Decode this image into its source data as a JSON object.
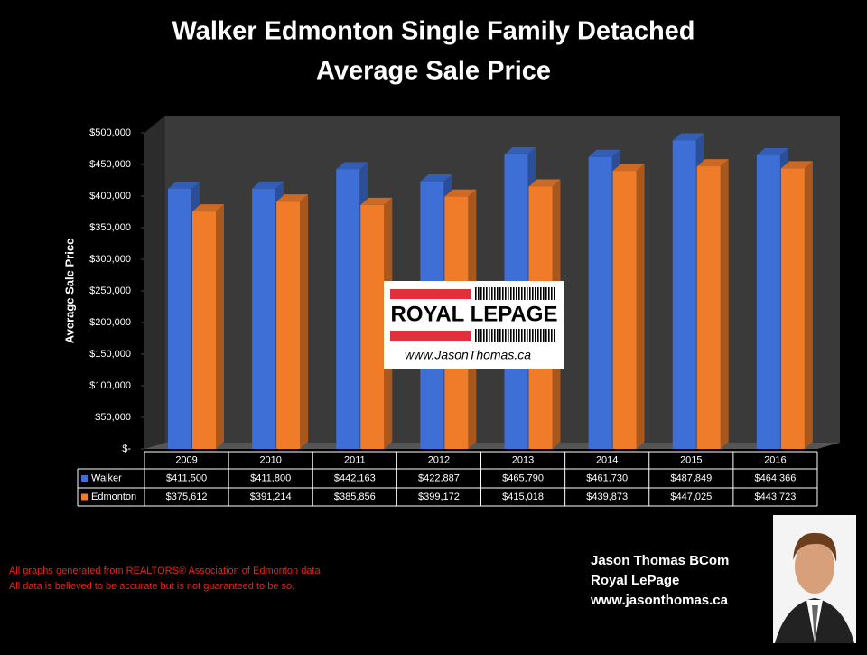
{
  "chart_data": {
    "type": "bar",
    "title": "Walker Edmonton Single Family Detached",
    "subtitle": "Average Sale Price",
    "y_label": "Average Sale Price",
    "categories": [
      "2009",
      "2010",
      "2011",
      "2012",
      "2013",
      "2014",
      "2015",
      "2016"
    ],
    "series": [
      {
        "name": "Walker",
        "color": "#3d6fd6",
        "values": [
          411500,
          411800,
          442163,
          422887,
          465790,
          461730,
          487849,
          464366
        ],
        "value_labels": [
          "$411,500",
          "$411,800",
          "$442,163",
          "$422,887",
          "$465,790",
          "$461,730",
          "$487,849",
          "$464,366"
        ]
      },
      {
        "name": "Edmonton",
        "color": "#f07c2a",
        "values": [
          375612,
          391214,
          385856,
          399172,
          415018,
          439873,
          447025,
          443723
        ],
        "value_labels": [
          "$375,612",
          "$391,214",
          "$385,856",
          "$399,172",
          "$415,018",
          "$439,873",
          "$447,025",
          "$443,723"
        ]
      }
    ],
    "ylim": [
      0,
      500000
    ],
    "yticks": [
      {
        "value": 0,
        "label": "$-"
      },
      {
        "value": 50000,
        "label": "$50,000"
      },
      {
        "value": 100000,
        "label": "$100,000"
      },
      {
        "value": 150000,
        "label": "$150,000"
      },
      {
        "value": 200000,
        "label": "$200,000"
      },
      {
        "value": 250000,
        "label": "$250,000"
      },
      {
        "value": 300000,
        "label": "$300,000"
      },
      {
        "value": 350000,
        "label": "$350,000"
      },
      {
        "value": 400000,
        "label": "$400,000"
      },
      {
        "value": 450000,
        "label": "$450,000"
      },
      {
        "value": 500000,
        "label": "$500,000"
      }
    ]
  },
  "logo": {
    "brand": "ROYAL LEPAGE",
    "url": "www.JasonThomas.ca"
  },
  "notes": [
    "All graphs generated from REALTORS® Association of Edmonton data",
    "All data is believed to be accurate but is not guaranteed to be so."
  ],
  "signature": [
    "Jason Thomas BCom",
    "Royal LePage",
    "www.jasonthomas.ca"
  ]
}
